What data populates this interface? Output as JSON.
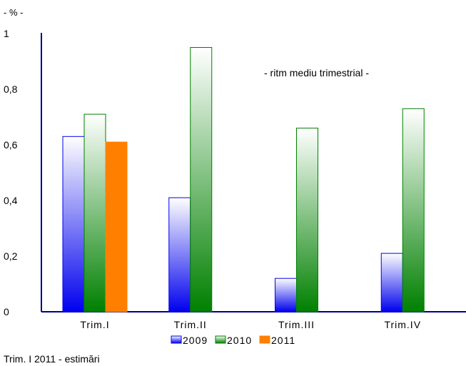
{
  "chart_data": {
    "type": "bar",
    "unit_label": "- % -",
    "annotation": "- ritm  mediu trimestrial -",
    "footnote": "Trim. I 2011 - estimări",
    "categories": [
      "Trim.I",
      "Trim.II",
      "Trim.III",
      "Trim.IV"
    ],
    "ylim": [
      0,
      1
    ],
    "yticks": [
      "0",
      "0,2",
      "0,4",
      "0,6",
      "0,8",
      "1"
    ],
    "legend_position": "bottom",
    "series": [
      {
        "name": "2009",
        "values": [
          0.63,
          0.41,
          0.12,
          0.21
        ],
        "color": "#0000ee",
        "light": "#ffffff"
      },
      {
        "name": "2010",
        "values": [
          0.71,
          0.95,
          0.66,
          0.73
        ],
        "color": "#008000",
        "light": "#ffffff"
      },
      {
        "name": "2011",
        "values": [
          0.61,
          null,
          null,
          null
        ],
        "color": "#ff8000",
        "light": "#ff8000"
      }
    ],
    "grid": false
  }
}
